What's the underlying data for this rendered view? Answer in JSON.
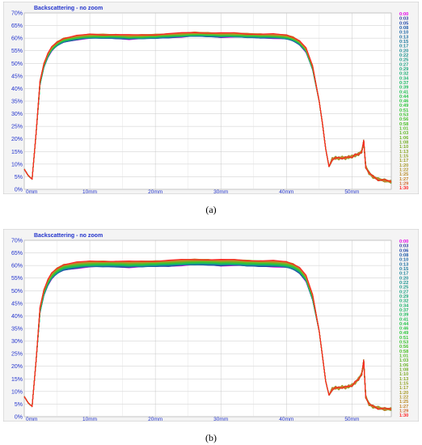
{
  "chart_data": [
    {
      "type": "line",
      "panel_label": "(a)",
      "title": "Backscattering - no zoom",
      "ylim": [
        0,
        70
      ],
      "xlim": [
        0,
        56
      ],
      "y_ticks": [
        "70%",
        "65%",
        "60%",
        "55%",
        "50%",
        "45%",
        "40%",
        "35%",
        "30%",
        "25%",
        "20%",
        "15%",
        "10%",
        "5%",
        "0%"
      ],
      "x_ticks": [
        "0mm",
        "10mm",
        "20mm",
        "30mm",
        "40mm",
        "50mm"
      ],
      "grid": true,
      "legend_position": "right",
      "series_times": [
        "0:00",
        "0:03",
        "0:05",
        "0:08",
        "0:10",
        "0:13",
        "0:15",
        "0:17",
        "0:20",
        "0:22",
        "0:25",
        "0:27",
        "0:29",
        "0:32",
        "0:34",
        "0:37",
        "0:39",
        "0:41",
        "0:44",
        "0:46",
        "0:49",
        "0:51",
        "0:53",
        "0:56",
        "0:58",
        "1:01",
        "1:03",
        "1:06",
        "1:08",
        "1:10",
        "1:13",
        "1:15",
        "1:17",
        "1:20",
        "1:22",
        "1:25",
        "1:27",
        "1:29",
        "1:30"
      ],
      "series_colors": [
        "#e600e6",
        "#2a3a9e",
        "#2048a8",
        "#1c58a8",
        "#1a64a4",
        "#1a6ea0",
        "#1a789c",
        "#1a8298",
        "#1a8a94",
        "#1a928e",
        "#1a9a88",
        "#1aa282",
        "#1aa87a",
        "#1aae72",
        "#1ab46a",
        "#1ab862",
        "#1cbc5a",
        "#20c052",
        "#24c44a",
        "#28c642",
        "#2ec63c",
        "#34c636",
        "#3cc430",
        "#44c22c",
        "#4cc02a",
        "#56bc28",
        "#60b828",
        "#6ab428",
        "#74b028",
        "#7eac28",
        "#88a828",
        "#92a428",
        "#9ca028",
        "#a69a28",
        "#b09428",
        "#ba8c28",
        "#c48428",
        "#d06a30",
        "#ff2020"
      ],
      "profile_x": [
        0,
        0.6,
        1.2,
        1.8,
        2.4,
        3.0,
        3.6,
        4.2,
        5.0,
        6.0,
        8.0,
        10,
        12,
        14,
        16,
        18,
        20,
        22,
        24,
        26,
        28,
        30,
        32,
        34,
        36,
        38,
        40,
        41,
        42,
        43,
        44,
        45,
        45.5,
        46,
        46.5,
        47,
        47.5,
        48,
        48.5,
        49,
        49.5,
        50,
        50.5,
        51,
        51.5,
        51.8,
        52.1,
        52.6,
        53.2,
        54,
        55,
        56
      ],
      "profile_y": [
        8,
        5.5,
        4,
        22,
        42,
        49,
        53,
        55.5,
        57.5,
        59,
        60,
        60.5,
        60.5,
        60.5,
        60.2,
        60.3,
        60.5,
        60.8,
        61,
        61.3,
        61.2,
        61,
        61,
        60.8,
        60.7,
        60.6,
        60.2,
        59.5,
        58,
        55,
        48,
        35,
        26,
        16,
        9,
        12,
        12.5,
        12.3,
        12.6,
        12.4,
        12.8,
        13,
        13.5,
        14,
        15,
        19,
        9,
        6.5,
        5,
        4,
        3.5,
        3
      ],
      "band_spread": 1.5
    },
    {
      "type": "line",
      "panel_label": "(b)",
      "title": "Backscattering - no zoom",
      "ylim": [
        0,
        70
      ],
      "xlim": [
        0,
        56
      ],
      "y_ticks": [
        "70%",
        "65%",
        "60%",
        "55%",
        "50%",
        "45%",
        "40%",
        "35%",
        "30%",
        "25%",
        "20%",
        "15%",
        "10%",
        "5%",
        "0%"
      ],
      "x_ticks": [
        "0mm",
        "10mm",
        "20mm",
        "30mm",
        "40mm",
        "50mm"
      ],
      "grid": true,
      "legend_position": "right",
      "series_times": [
        "0:00",
        "0:03",
        "0:06",
        "0:08",
        "0:10",
        "0:13",
        "0:15",
        "0:17",
        "0:20",
        "0:22",
        "0:25",
        "0:27",
        "0:29",
        "0:32",
        "0:34",
        "0:37",
        "0:39",
        "0:41",
        "0:44",
        "0:46",
        "0:49",
        "0:51",
        "0:53",
        "0:56",
        "0:58",
        "1:01",
        "1:03",
        "1:06",
        "1:08",
        "1:10",
        "1:13",
        "1:15",
        "1:17",
        "1:20",
        "1:22",
        "1:25",
        "1:27",
        "1:29",
        "1:30"
      ],
      "series_colors": [
        "#e600e6",
        "#2a3a9e",
        "#2048a8",
        "#1c58a8",
        "#1a64a4",
        "#1a6ea0",
        "#1a789c",
        "#1a8298",
        "#1a8a94",
        "#1a928e",
        "#1a9a88",
        "#1aa282",
        "#1aa87a",
        "#1aae72",
        "#1ab46a",
        "#1ab862",
        "#1cbc5a",
        "#20c052",
        "#24c44a",
        "#28c642",
        "#2ec63c",
        "#34c636",
        "#3cc430",
        "#44c22c",
        "#4cc02a",
        "#56bc28",
        "#60b828",
        "#6ab428",
        "#74b028",
        "#7eac28",
        "#88a828",
        "#92a428",
        "#9ca028",
        "#a69a28",
        "#b09428",
        "#ba8c28",
        "#c48428",
        "#d06a30",
        "#ff2020"
      ],
      "profile_x": [
        0,
        0.6,
        1.2,
        1.8,
        2.4,
        3.0,
        3.6,
        4.2,
        5.0,
        6.0,
        8.0,
        10,
        12,
        14,
        16,
        18,
        20,
        22,
        24,
        26,
        28,
        30,
        32,
        34,
        36,
        38,
        40,
        41,
        42,
        43,
        44,
        45,
        45.5,
        46,
        46.5,
        47,
        47.5,
        48,
        48.5,
        49,
        49.5,
        50,
        50.5,
        51,
        51.5,
        51.8,
        52.1,
        52.6,
        53.2,
        54,
        55,
        56
      ],
      "profile_y": [
        8,
        5.5,
        4,
        22,
        42,
        49,
        53,
        55.5,
        57.5,
        59,
        59.8,
        60.2,
        60.3,
        60.3,
        60.1,
        60.2,
        60.4,
        60.6,
        60.8,
        61,
        61,
        60.8,
        60.8,
        60.6,
        60.5,
        60.4,
        60,
        59.3,
        57.8,
        54.5,
        47,
        34,
        24,
        14,
        8.5,
        11,
        11.5,
        11.3,
        11.8,
        11.6,
        12,
        12.5,
        13.5,
        15,
        17,
        22,
        8,
        5,
        4,
        3.5,
        3,
        3
      ],
      "band_spread": 2.2
    }
  ]
}
